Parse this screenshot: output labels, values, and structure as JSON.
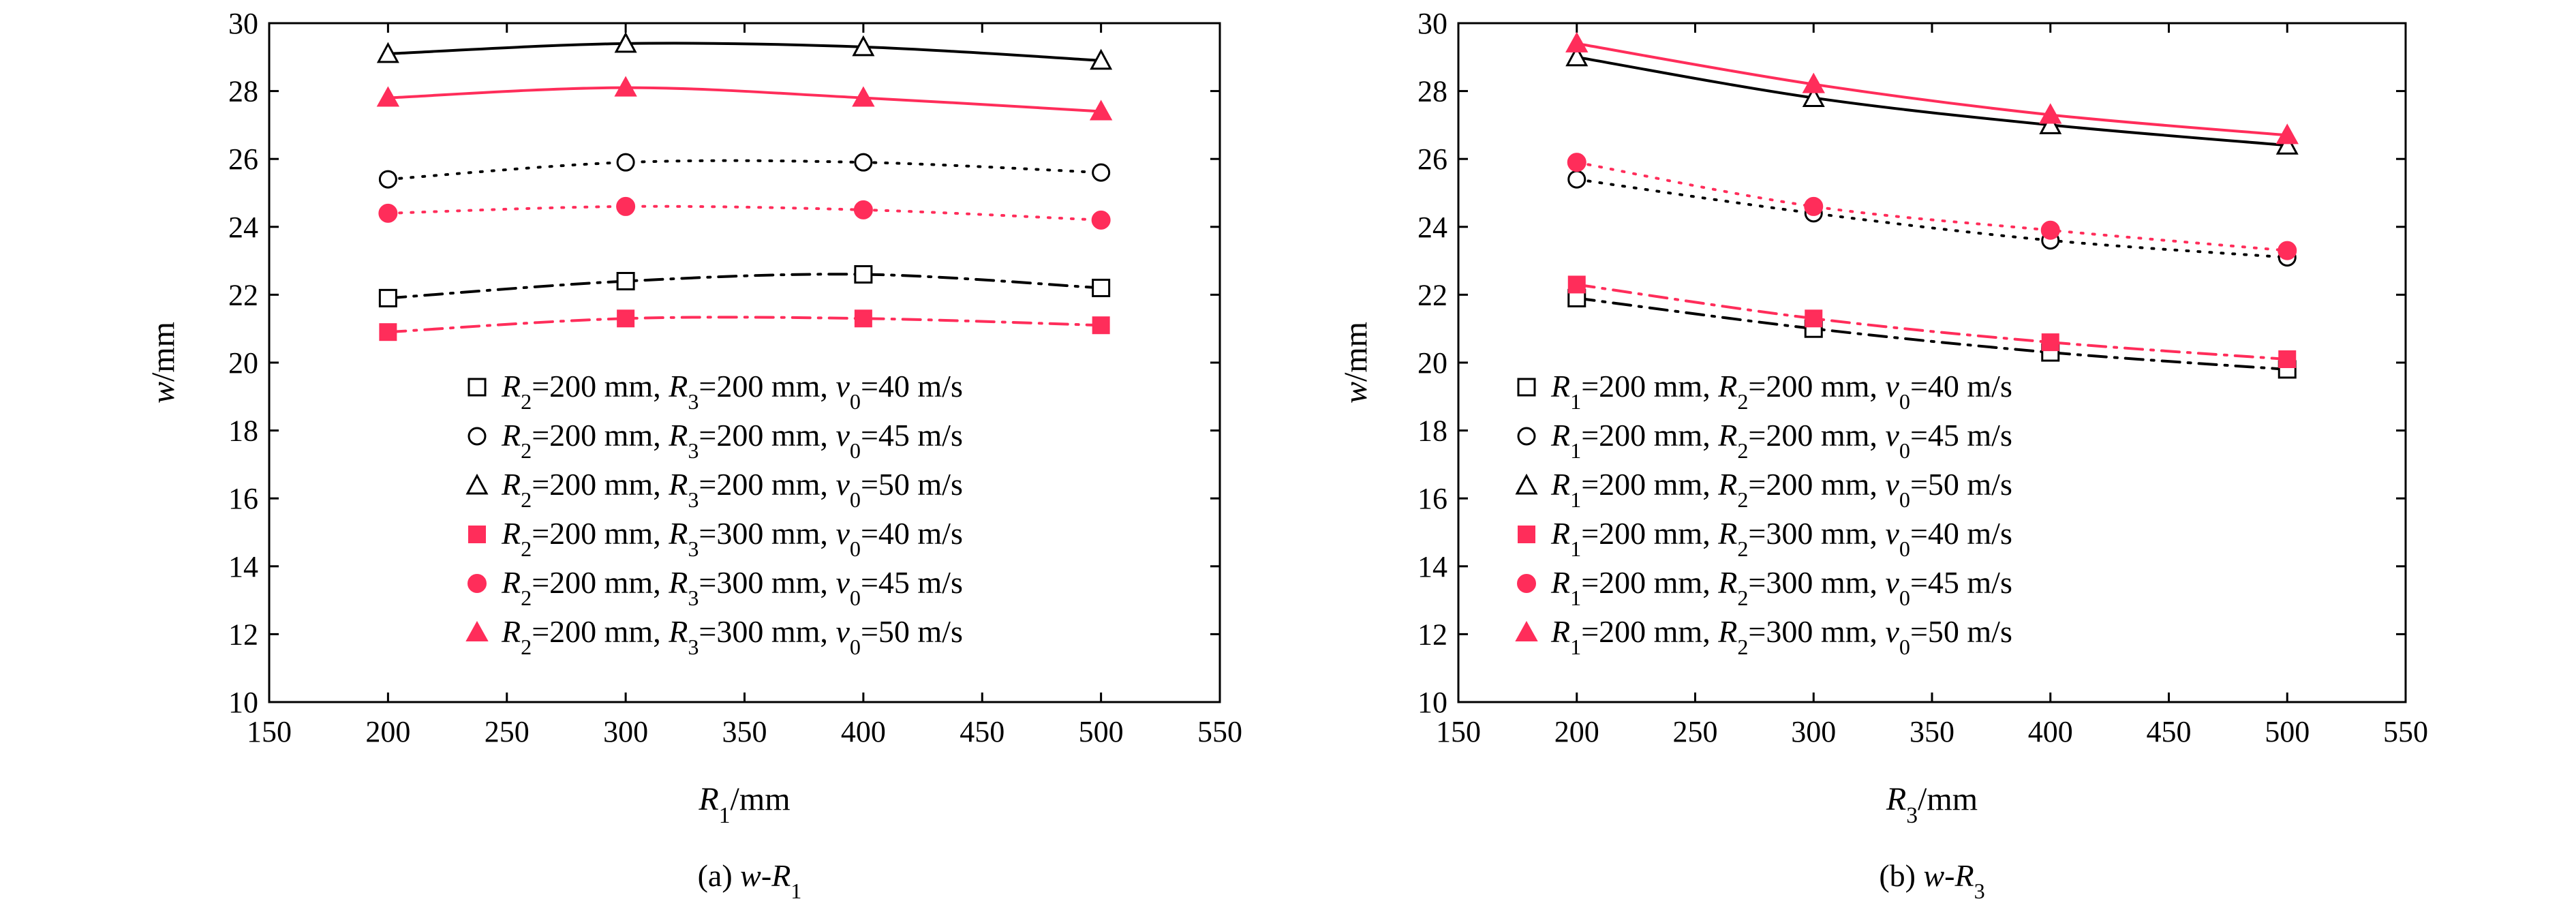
{
  "chart_data": [
    {
      "type": "line",
      "caption": {
        "prefix": "(a) ",
        "var": "w",
        "sep": "-",
        "sub_base": "R",
        "sub_index": "1"
      },
      "xlabel": {
        "base": "R",
        "sub": "1",
        "unit": "/mm"
      },
      "ylabel": {
        "base": "w",
        "unit": "/mm"
      },
      "xlim": [
        150,
        550
      ],
      "ylim": [
        10,
        30
      ],
      "xticks": [
        150,
        200,
        250,
        300,
        350,
        400,
        450,
        500,
        550
      ],
      "yticks": [
        10,
        12,
        14,
        16,
        18,
        20,
        22,
        24,
        26,
        28,
        30
      ],
      "grid": false,
      "legend_position": "lower-right",
      "x": [
        200,
        300,
        400,
        500
      ],
      "series": [
        {
          "name": "R2=200 mm, R3=200 mm, v0=40 m/s",
          "label": {
            "a": "R",
            "as": "2",
            "av": "=200 mm, ",
            "b": "R",
            "bs": "3",
            "bv": "=200 mm, ",
            "c": "v",
            "cs": "0",
            "cv": "=40 m/s"
          },
          "values": [
            21.9,
            22.4,
            22.6,
            22.2
          ],
          "marker": "square-open",
          "color": "#000000",
          "dash": "dashdot"
        },
        {
          "name": "R2=200 mm, R3=200 mm, v0=45 m/s",
          "label": {
            "a": "R",
            "as": "2",
            "av": "=200 mm, ",
            "b": "R",
            "bs": "3",
            "bv": "=200 mm, ",
            "c": "v",
            "cs": "0",
            "cv": "=45 m/s"
          },
          "values": [
            25.4,
            25.9,
            25.9,
            25.6
          ],
          "marker": "circle-open",
          "color": "#000000",
          "dash": "dot"
        },
        {
          "name": "R2=200 mm, R3=200 mm, v0=50 m/s",
          "label": {
            "a": "R",
            "as": "2",
            "av": "=200 mm, ",
            "b": "R",
            "bs": "3",
            "bv": "=200 mm, ",
            "c": "v",
            "cs": "0",
            "cv": "=50 m/s"
          },
          "values": [
            29.1,
            29.4,
            29.3,
            28.9
          ],
          "marker": "triangle-open",
          "color": "#000000",
          "dash": "solid"
        },
        {
          "name": "R2=200 mm, R3=300 mm, v0=40 m/s",
          "label": {
            "a": "R",
            "as": "2",
            "av": "=200 mm, ",
            "b": "R",
            "bs": "3",
            "bv": "=300 mm, ",
            "c": "v",
            "cs": "0",
            "cv": "=40 m/s"
          },
          "values": [
            20.9,
            21.3,
            21.3,
            21.1
          ],
          "marker": "square-filled",
          "color": "#ff2d5a",
          "dash": "dashdot"
        },
        {
          "name": "R2=200 mm, R3=300 mm, v0=45 m/s",
          "label": {
            "a": "R",
            "as": "2",
            "av": "=200 mm, ",
            "b": "R",
            "bs": "3",
            "bv": "=300 mm, ",
            "c": "v",
            "cs": "0",
            "cv": "=45 m/s"
          },
          "values": [
            24.4,
            24.6,
            24.5,
            24.2
          ],
          "marker": "circle-filled",
          "color": "#ff2d5a",
          "dash": "dot"
        },
        {
          "name": "R2=200 mm, R3=300 mm, v0=50 m/s",
          "label": {
            "a": "R",
            "as": "2",
            "av": "=200 mm, ",
            "b": "R",
            "bs": "3",
            "bv": "=300 mm, ",
            "c": "v",
            "cs": "0",
            "cv": "=50 m/s"
          },
          "values": [
            27.8,
            28.1,
            27.8,
            27.4
          ],
          "marker": "triangle-filled",
          "color": "#ff2d5a",
          "dash": "solid"
        }
      ]
    },
    {
      "type": "line",
      "caption": {
        "prefix": "(b) ",
        "var": "w",
        "sep": "-",
        "sub_base": "R",
        "sub_index": "3"
      },
      "xlabel": {
        "base": "R",
        "sub": "3",
        "unit": "/mm"
      },
      "ylabel": {
        "base": "w",
        "unit": "/mm"
      },
      "xlim": [
        150,
        550
      ],
      "ylim": [
        10,
        30
      ],
      "xticks": [
        150,
        200,
        250,
        300,
        350,
        400,
        450,
        500,
        550
      ],
      "yticks": [
        10,
        12,
        14,
        16,
        18,
        20,
        22,
        24,
        26,
        28,
        30
      ],
      "grid": false,
      "legend_position": "lower-left",
      "x": [
        200,
        300,
        400,
        500
      ],
      "series": [
        {
          "name": "R1=200 mm, R2=200 mm, v0=40 m/s",
          "label": {
            "a": "R",
            "as": "1",
            "av": "=200 mm, ",
            "b": "R",
            "bs": "2",
            "bv": "=200 mm, ",
            "c": "v",
            "cs": "0",
            "cv": "=40 m/s"
          },
          "values": [
            21.9,
            21.0,
            20.3,
            19.8
          ],
          "marker": "square-open",
          "color": "#000000",
          "dash": "dashdot"
        },
        {
          "name": "R1=200 mm, R2=200 mm, v0=45 m/s",
          "label": {
            "a": "R",
            "as": "1",
            "av": "=200 mm, ",
            "b": "R",
            "bs": "2",
            "bv": "=200 mm, ",
            "c": "v",
            "cs": "0",
            "cv": "=45 m/s"
          },
          "values": [
            25.4,
            24.4,
            23.6,
            23.1
          ],
          "marker": "circle-open",
          "color": "#000000",
          "dash": "dot"
        },
        {
          "name": "R1=200 mm, R2=200 mm, v0=50 m/s",
          "label": {
            "a": "R",
            "as": "1",
            "av": "=200 mm, ",
            "b": "R",
            "bs": "2",
            "bv": "=200 mm, ",
            "c": "v",
            "cs": "0",
            "cv": "=50 m/s"
          },
          "values": [
            29.0,
            27.8,
            27.0,
            26.4
          ],
          "marker": "triangle-open",
          "color": "#000000",
          "dash": "solid"
        },
        {
          "name": "R1=200 mm, R2=300 mm, v0=40 m/s",
          "label": {
            "a": "R",
            "as": "1",
            "av": "=200 mm, ",
            "b": "R",
            "bs": "2",
            "bv": "=300 mm, ",
            "c": "v",
            "cs": "0",
            "cv": "=40 m/s"
          },
          "values": [
            22.3,
            21.3,
            20.6,
            20.1
          ],
          "marker": "square-filled",
          "color": "#ff2d5a",
          "dash": "dashdot"
        },
        {
          "name": "R1=200 mm, R2=300 mm, v0=45 m/s",
          "label": {
            "a": "R",
            "as": "1",
            "av": "=200 mm, ",
            "b": "R",
            "bs": "2",
            "bv": "=300 mm, ",
            "c": "v",
            "cs": "0",
            "cv": "=45 m/s"
          },
          "values": [
            25.9,
            24.6,
            23.9,
            23.3
          ],
          "marker": "circle-filled",
          "color": "#ff2d5a",
          "dash": "dot"
        },
        {
          "name": "R1=200 mm, R2=300 mm, v0=50 m/s",
          "label": {
            "a": "R",
            "as": "1",
            "av": "=200 mm, ",
            "b": "R",
            "bs": "2",
            "bv": "=300 mm, ",
            "c": "v",
            "cs": "0",
            "cv": "=50 m/s"
          },
          "values": [
            29.4,
            28.2,
            27.3,
            26.7
          ],
          "marker": "triangle-filled",
          "color": "#ff2d5a",
          "dash": "solid"
        }
      ]
    }
  ]
}
